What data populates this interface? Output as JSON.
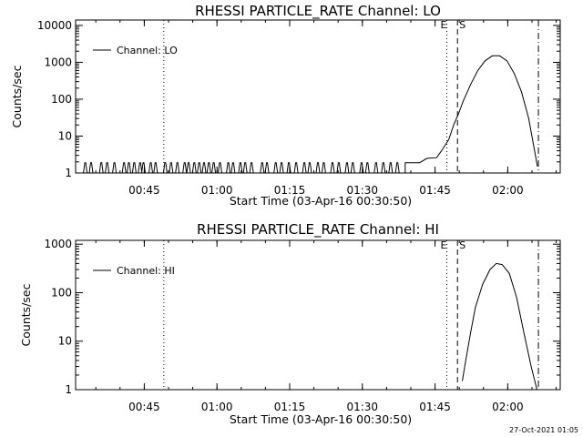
{
  "timestamp": "27-Oct-2021 01:05",
  "chart_data": [
    {
      "type": "line",
      "title": "RHESSI PARTICLE_RATE Channel: LO",
      "xlabel": "Start Time (03-Apr-16 00:30:50)",
      "ylabel": "Counts/sec",
      "yscale": "log",
      "ylim": [
        1,
        14000
      ],
      "xlim_minutes": [
        0,
        100
      ],
      "xtick_labels": [
        "00:45",
        "01:00",
        "01:15",
        "01:30",
        "01:45",
        "02:00"
      ],
      "xtick_minutes": [
        14.17,
        29.17,
        44.17,
        59.17,
        74.17,
        89.17
      ],
      "ytick_labels": [
        "1",
        "10",
        "100",
        "1000",
        "10000"
      ],
      "ytick_values": [
        1,
        10,
        100,
        1000,
        10000
      ],
      "legend": [
        "Channel: LO"
      ],
      "legend_position": "top-left",
      "markers": [
        {
          "minute": 18.2,
          "style": "dotted",
          "label": ""
        },
        {
          "minute": 76.6,
          "style": "dotted",
          "label": "E"
        },
        {
          "minute": 78.8,
          "style": "dashed",
          "label": "S"
        },
        {
          "minute": 95.5,
          "style": "dash-dot",
          "label": ""
        }
      ],
      "series": [
        {
          "baseline_interval": [
            0,
            68
          ],
          "spikes_minutes": [
            2.0,
            3.2,
            5.3,
            6.5,
            8.0,
            10.0,
            11.0,
            12.1,
            13.3,
            14.0,
            15.5,
            16.5,
            18.5,
            19.7,
            21.0,
            22.5,
            23.3,
            24.5,
            25.5,
            26.5,
            27.5,
            28.5,
            29.8,
            31.5,
            32.5,
            34.0,
            35.0,
            36.3,
            38.5,
            39.5,
            41.3,
            42.5,
            44.0,
            45.5,
            47.2,
            48.3,
            50.0,
            51.2,
            53.0,
            54.3,
            56.0,
            57.2,
            59.0,
            60.2,
            62.0,
            63.5,
            65.0,
            66.4
          ],
          "points": [
            [
              68,
              1.9
            ],
            [
              71,
              1.9
            ],
            [
              72.5,
              2.5
            ],
            [
              74.5,
              2.6
            ],
            [
              75.5,
              4
            ],
            [
              77,
              8
            ],
            [
              78,
              20
            ],
            [
              79,
              40
            ],
            [
              80,
              90
            ],
            [
              81.5,
              250
            ],
            [
              83,
              600
            ],
            [
              84.5,
              1100
            ],
            [
              86,
              1500
            ],
            [
              87.5,
              1500
            ],
            [
              89,
              1100
            ],
            [
              90.5,
              500
            ],
            [
              92,
              160
            ],
            [
              93.5,
              30
            ],
            [
              95.3,
              1.5
            ]
          ]
        }
      ]
    },
    {
      "type": "line",
      "title": "RHESSI PARTICLE_RATE Channel: HI",
      "xlabel": "Start Time (03-Apr-16 00:30:50)",
      "ylabel": "Counts/sec",
      "yscale": "log",
      "ylim": [
        1,
        1200
      ],
      "xlim_minutes": [
        0,
        100
      ],
      "xtick_labels": [
        "00:45",
        "01:00",
        "01:15",
        "01:30",
        "01:45",
        "02:00"
      ],
      "xtick_minutes": [
        14.17,
        29.17,
        44.17,
        59.17,
        74.17,
        89.17
      ],
      "ytick_labels": [
        "1",
        "10",
        "100",
        "1000"
      ],
      "ytick_values": [
        1,
        10,
        100,
        1000
      ],
      "legend": [
        "Channel: HI"
      ],
      "legend_position": "top-left",
      "markers": [
        {
          "minute": 18.2,
          "style": "dotted",
          "label": ""
        },
        {
          "minute": 76.6,
          "style": "dotted",
          "label": "E"
        },
        {
          "minute": 78.8,
          "style": "dashed",
          "label": "S"
        },
        {
          "minute": 95.5,
          "style": "dash-dot",
          "label": ""
        }
      ],
      "series": [
        {
          "points": [
            [
              79.8,
              1.5
            ],
            [
              80.5,
              4
            ],
            [
              81.5,
              15
            ],
            [
              82.5,
              50
            ],
            [
              84,
              150
            ],
            [
              85.5,
              300
            ],
            [
              86.8,
              400
            ],
            [
              88,
              380
            ],
            [
              89.5,
              250
            ],
            [
              91,
              80
            ],
            [
              92.5,
              15
            ],
            [
              94,
              3
            ],
            [
              95.2,
              1
            ]
          ]
        }
      ]
    }
  ]
}
